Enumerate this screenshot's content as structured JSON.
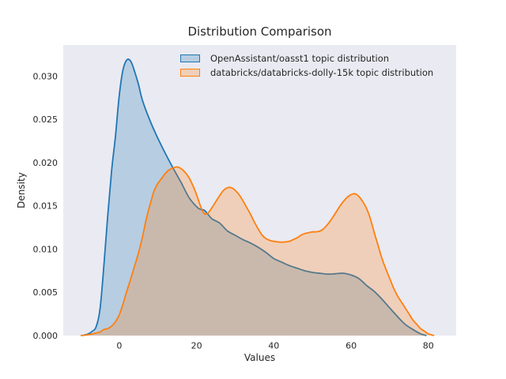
{
  "title": "Distribution Comparison",
  "chart_data": {
    "type": "area",
    "subtype": "kde-density",
    "title": "Distribution Comparison",
    "xlabel": "Values",
    "ylabel": "Density",
    "xlim": [
      -14.5,
      87.2
    ],
    "ylim": [
      0,
      0.0336
    ],
    "xticks": [
      0,
      20,
      40,
      60,
      80
    ],
    "yticks": [
      0.0,
      0.005,
      0.01,
      0.015,
      0.02,
      0.025,
      0.03
    ],
    "grid": false,
    "background": "#eaeaf2",
    "text_color": "#262626",
    "legend_position": "upper center, frameless",
    "series": [
      {
        "name": "OpenAssistant/oasst1 topic distribution",
        "color": "#1f77b4",
        "fill_alpha": 0.25,
        "peak": {
          "x": 2.5,
          "density": 0.0319
        },
        "points": [
          [
            -9.5,
            0
          ],
          [
            -8,
            0.0002
          ],
          [
            -7,
            0.0005
          ],
          [
            -6,
            0.001
          ],
          [
            -5,
            0.003
          ],
          [
            -4,
            0.008
          ],
          [
            -3,
            0.0138
          ],
          [
            -2,
            0.019
          ],
          [
            -1,
            0.023
          ],
          [
            0,
            0.0278
          ],
          [
            1,
            0.0308
          ],
          [
            2,
            0.0319
          ],
          [
            3,
            0.0317
          ],
          [
            4,
            0.0305
          ],
          [
            5,
            0.029
          ],
          [
            6,
            0.0272
          ],
          [
            8,
            0.0248
          ],
          [
            10,
            0.0228
          ],
          [
            12,
            0.021
          ],
          [
            14,
            0.0193
          ],
          [
            16,
            0.0177
          ],
          [
            18,
            0.016
          ],
          [
            20,
            0.0149
          ],
          [
            21,
            0.0146
          ],
          [
            22,
            0.0145
          ],
          [
            23,
            0.014
          ],
          [
            24,
            0.0135
          ],
          [
            26,
            0.013
          ],
          [
            28,
            0.0121
          ],
          [
            30,
            0.0116
          ],
          [
            32,
            0.0111
          ],
          [
            34,
            0.0107
          ],
          [
            36,
            0.0102
          ],
          [
            38,
            0.0096
          ],
          [
            40,
            0.0089
          ],
          [
            42,
            0.0085
          ],
          [
            44,
            0.0081
          ],
          [
            46,
            0.0078
          ],
          [
            48,
            0.0075
          ],
          [
            50,
            0.0073
          ],
          [
            52,
            0.0072
          ],
          [
            54,
            0.0071
          ],
          [
            56,
            0.00715
          ],
          [
            58,
            0.0072
          ],
          [
            60,
            0.007
          ],
          [
            62,
            0.0066
          ],
          [
            64,
            0.0058
          ],
          [
            66,
            0.0051
          ],
          [
            68,
            0.0042
          ],
          [
            70,
            0.0032
          ],
          [
            72,
            0.0022
          ],
          [
            74,
            0.0013
          ],
          [
            76,
            0.0007
          ],
          [
            78,
            0.0002
          ],
          [
            79.5,
            0
          ]
        ]
      },
      {
        "name": "databricks/databricks-dolly-15k topic distribution",
        "color": "#ff7f0e",
        "fill_alpha": 0.25,
        "peaks": [
          {
            "x": 15,
            "density": 0.0195
          },
          {
            "x": 28.5,
            "density": 0.0171
          },
          {
            "x": 61,
            "density": 0.0164
          }
        ],
        "points": [
          [
            -10,
            0
          ],
          [
            -8,
            0.0001
          ],
          [
            -6,
            0.0003
          ],
          [
            -5,
            0.0004
          ],
          [
            -4,
            0.0007
          ],
          [
            -3,
            0.0008
          ],
          [
            -2,
            0.0011
          ],
          [
            -1,
            0.0016
          ],
          [
            0,
            0.0024
          ],
          [
            1,
            0.0037
          ],
          [
            2,
            0.0052
          ],
          [
            3,
            0.0066
          ],
          [
            4,
            0.0081
          ],
          [
            5,
            0.0096
          ],
          [
            6,
            0.0114
          ],
          [
            7,
            0.0135
          ],
          [
            8,
            0.0152
          ],
          [
            9,
            0.0167
          ],
          [
            10,
            0.0176
          ],
          [
            11,
            0.0182
          ],
          [
            12,
            0.0188
          ],
          [
            13,
            0.0192
          ],
          [
            14,
            0.0194
          ],
          [
            15,
            0.0195
          ],
          [
            16,
            0.0193
          ],
          [
            17,
            0.0189
          ],
          [
            18,
            0.0183
          ],
          [
            19,
            0.0174
          ],
          [
            20,
            0.0163
          ],
          [
            21,
            0.015
          ],
          [
            22,
            0.0141
          ],
          [
            23,
            0.0142
          ],
          [
            24,
            0.0148
          ],
          [
            25,
            0.0155
          ],
          [
            26,
            0.0162
          ],
          [
            27,
            0.0168
          ],
          [
            28,
            0.0171
          ],
          [
            29,
            0.0171
          ],
          [
            30,
            0.0168
          ],
          [
            31,
            0.0163
          ],
          [
            32,
            0.0156
          ],
          [
            33,
            0.0148
          ],
          [
            34,
            0.014
          ],
          [
            35,
            0.0131
          ],
          [
            36,
            0.0123
          ],
          [
            37,
            0.0116
          ],
          [
            38,
            0.0112
          ],
          [
            39,
            0.011
          ],
          [
            40,
            0.0109
          ],
          [
            42,
            0.0108
          ],
          [
            44,
            0.0109
          ],
          [
            45,
            0.0111
          ],
          [
            46,
            0.0113
          ],
          [
            47,
            0.0116
          ],
          [
            48,
            0.0118
          ],
          [
            49,
            0.0119
          ],
          [
            50,
            0.012
          ],
          [
            51,
            0.012
          ],
          [
            52,
            0.0121
          ],
          [
            53,
            0.0124
          ],
          [
            54,
            0.0129
          ],
          [
            55,
            0.0135
          ],
          [
            56,
            0.0142
          ],
          [
            57,
            0.0149
          ],
          [
            58,
            0.0155
          ],
          [
            59,
            0.016
          ],
          [
            60,
            0.0163
          ],
          [
            61,
            0.0164
          ],
          [
            62,
            0.0161
          ],
          [
            63,
            0.0155
          ],
          [
            64,
            0.0147
          ],
          [
            65,
            0.0135
          ],
          [
            66,
            0.0119
          ],
          [
            67,
            0.0104
          ],
          [
            68,
            0.0089
          ],
          [
            69,
            0.0077
          ],
          [
            70,
            0.0066
          ],
          [
            71,
            0.0055
          ],
          [
            72,
            0.0046
          ],
          [
            73,
            0.0039
          ],
          [
            74,
            0.0032
          ],
          [
            75,
            0.0025
          ],
          [
            76,
            0.0018
          ],
          [
            77,
            0.0013
          ],
          [
            78,
            0.0008
          ],
          [
            79,
            0.0005
          ],
          [
            80,
            0.0002
          ],
          [
            81.5,
            0
          ]
        ]
      }
    ]
  },
  "legend": {
    "items": [
      {
        "label": "OpenAssistant/oasst1 topic distribution"
      },
      {
        "label": "databricks/databricks-dolly-15k topic distribution"
      }
    ]
  }
}
